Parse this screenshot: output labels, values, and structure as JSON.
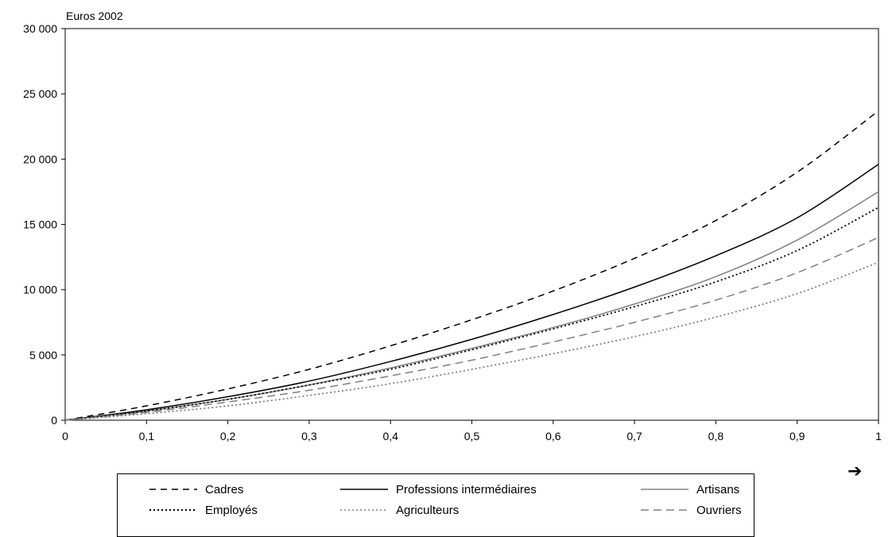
{
  "chart_data": {
    "type": "line",
    "title": "",
    "ylabel": "Euros 2002",
    "xlabel": "",
    "x_ticks": [
      "0",
      "0,1",
      "0,2",
      "0,3",
      "0,4",
      "0,5",
      "0,6",
      "0,7",
      "0,8",
      "0,9",
      "1"
    ],
    "y_ticks": [
      "0",
      "5 000",
      "10 000",
      "15 000",
      "20 000",
      "25 000",
      "30 000"
    ],
    "xlim": [
      0,
      1
    ],
    "ylim": [
      0,
      30000
    ],
    "grid": false,
    "legend_position": "bottom",
    "x": [
      0,
      0.1,
      0.2,
      0.3,
      0.4,
      0.5,
      0.6,
      0.7,
      0.8,
      0.9,
      1.0
    ],
    "series": [
      {
        "name": "Cadres",
        "color": "#000000",
        "dash": "8,6",
        "values": [
          0,
          1100,
          2400,
          3900,
          5700,
          7700,
          9900,
          12400,
          15300,
          19000,
          23700
        ]
      },
      {
        "name": "Professions intermédiaires",
        "color": "#000000",
        "dash": "",
        "values": [
          0,
          800,
          1800,
          3000,
          4500,
          6200,
          8100,
          10200,
          12600,
          15500,
          19600
        ]
      },
      {
        "name": "Artisans",
        "color": "#808080",
        "dash": "",
        "values": [
          0,
          700,
          1600,
          2700,
          4000,
          5500,
          7100,
          8900,
          11000,
          13800,
          17500
        ]
      },
      {
        "name": "Employés",
        "color": "#000000",
        "dash": "2,3",
        "values": [
          0,
          700,
          1600,
          2700,
          3900,
          5400,
          7000,
          8700,
          10600,
          13000,
          16300
        ]
      },
      {
        "name": "Agriculteurs",
        "color": "#808080",
        "dash": "2,3",
        "values": [
          0,
          500,
          1100,
          1900,
          2800,
          3900,
          5100,
          6400,
          7900,
          9700,
          12100
        ]
      },
      {
        "name": "Ouvriers",
        "color": "#808080",
        "dash": "10,6",
        "values": [
          0,
          600,
          1400,
          2300,
          3400,
          4600,
          6000,
          7500,
          9200,
          11300,
          14000
        ]
      }
    ]
  },
  "arrow_glyph": "➔"
}
